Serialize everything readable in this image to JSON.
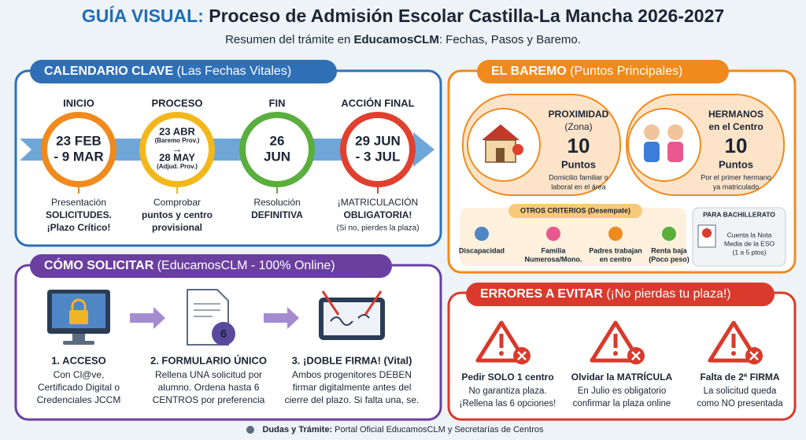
{
  "header": {
    "title_prefix": "GUÍA VISUAL:",
    "title": " Proceso de Admisión Escolar Castilla-La Mancha 2026-2027",
    "subtitle": [
      "Resumen del trámite en ",
      "EducamosCLM",
      ": Fechas, Pasos y Baremo."
    ]
  },
  "calendar": {
    "title": "CALENDARIO CLAVE",
    "subtitle": " (Las Fechas Vitales)",
    "steps": [
      {
        "label": "INICIO",
        "dates": [
          "23 FEB",
          "- 9 MAR"
        ],
        "description": [
          "Presentación",
          "SOLICITUDES.",
          "¡Plazo Crítico!"
        ]
      },
      {
        "label": "PROCESO",
        "dates": [
          "23 ABR",
          "(Baremo Prov.)",
          "→",
          "28 MAY",
          "(Adjud. Prov.)"
        ],
        "description": [
          "Comprobar",
          "puntos y centro",
          "provisional"
        ]
      },
      {
        "label": "FIN",
        "dates": [
          "26",
          "JUN"
        ],
        "description": [
          "Resolución",
          "DEFINITIVA"
        ]
      },
      {
        "label": "ACCIÓN FINAL",
        "dates": [
          "29 JUN",
          "- 3 JUL"
        ],
        "description": [
          "¡MATRICULACIÓN",
          "OBLIGATORIA!",
          "(Si no, pierdes la plaza)"
        ]
      }
    ]
  },
  "how_to": {
    "title": "CÓMO SOLICITAR",
    "subtitle": " (EducamosCLM - 100% Online)",
    "steps": [
      {
        "title": "1. ACCESO",
        "description": [
          "Con Cl@ve,",
          "Certificado Digital o",
          "Credenciales JCCM"
        ]
      },
      {
        "title": "2. FORMULARIO ÚNICO",
        "icon_number": "6",
        "description": [
          "Rellena UNA solicitud por",
          "alumno. Ordena hasta 6",
          "CENTROS por preferencia"
        ]
      },
      {
        "title": "3. ¡DOBLE FIRMA! (Vital)",
        "description": [
          "Ambos progenitores DEBEN",
          "firmar digitalmente antes del",
          "cierre del plazo. Si falta una, se."
        ]
      }
    ]
  },
  "baremo": {
    "title": "EL BAREMO",
    "subtitle": " (Puntos Principales)",
    "cards": [
      {
        "lines": [
          "PROXIMIDAD",
          "(Zona)"
        ],
        "points": "10",
        "unit": "Puntos",
        "description": [
          "Domicilio familiar o",
          "laboral en el área"
        ]
      },
      {
        "lines": [
          "HERMANOS",
          "en el Centro"
        ],
        "points": "10",
        "unit": "Puntos",
        "description": [
          "Por el primer hermano",
          "ya matriculado"
        ]
      }
    ],
    "other": {
      "title": "OTROS CRITERIOS (Desempate)",
      "items": [
        [
          "Discapacidad"
        ],
        [
          "Familia",
          "Numerosa/Mono."
        ],
        [
          "Padres trabajan",
          "en centro"
        ],
        [
          "Renta baja",
          "(Poco peso)"
        ]
      ]
    },
    "bachillerato": {
      "title": "PARA BACHILLERATO",
      "lines": [
        "Cuenta la Nota",
        "Media de la ESO",
        "(1 a 5 ptos)"
      ]
    }
  },
  "errors": {
    "title": "ERRORES A EVITAR",
    "subtitle": " (¡No pierdas tu plaza!)",
    "items": [
      {
        "title": "Pedir SOLO 1 centro",
        "description": [
          "No garantiza plaza.",
          "¡Rellena las 6 opciones!"
        ]
      },
      {
        "title": "Olvidar la MATRÍCULA",
        "description": [
          "En Julio es obligatorio",
          "confirmar la plaza online"
        ]
      },
      {
        "title": "Falta de 2ª FIRMA",
        "description": [
          "La solicitud queda",
          "como NO presentada"
        ]
      }
    ]
  },
  "footer": {
    "label": "Dudas y Trámite:",
    "text": " Portal Oficial EducamosCLM y Secretarías de Centros"
  }
}
